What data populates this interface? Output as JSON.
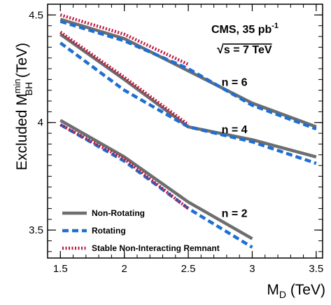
{
  "chart_data": {
    "type": "line",
    "xlabel": "M_D (TeV)",
    "ylabel": "Excluded M_BH^min (TeV)",
    "xlim": [
      1.4,
      3.55
    ],
    "ylim": [
      3.37,
      4.55
    ],
    "x_ticks": [
      1.5,
      2,
      2.5,
      3,
      3.5
    ],
    "x_tick_labels": [
      "1.5",
      "2",
      "2.5",
      "3",
      "3.5"
    ],
    "y_ticks": [
      3.5,
      4,
      4.5
    ],
    "y_tick_labels": [
      "3.5",
      "4",
      "4.5"
    ],
    "grid": false,
    "legend_position": "bottom-left",
    "series": [
      {
        "name": "Non-Rotating",
        "group": "n = 6",
        "style": "solid",
        "color": "#6e6e6e",
        "x": [
          1.5,
          2,
          2.5,
          3,
          3.5
        ],
        "y": [
          4.48,
          4.39,
          4.24,
          4.09,
          3.98
        ]
      },
      {
        "name": "Rotating",
        "group": "n = 6",
        "style": "dashed",
        "color": "#1f6fd1",
        "x": [
          1.5,
          2,
          2.5,
          3,
          3.5
        ],
        "y": [
          4.47,
          4.38,
          4.25,
          4.08,
          3.97
        ]
      },
      {
        "name": "Stable Non-Interacting Remnant",
        "group": "n = 6",
        "style": "dotted",
        "color": "#c0143c",
        "x": [
          1.5,
          2,
          2.5
        ],
        "y": [
          4.5,
          4.41,
          4.27
        ]
      },
      {
        "name": "Non-Rotating",
        "group": "n = 4",
        "style": "solid",
        "color": "#6e6e6e",
        "x": [
          1.5,
          2,
          2.5,
          3,
          3.5
        ],
        "y": [
          4.41,
          4.2,
          3.98,
          3.92,
          3.84
        ]
      },
      {
        "name": "Rotating",
        "group": "n = 4",
        "style": "dashed",
        "color": "#1f6fd1",
        "x": [
          1.5,
          2,
          2.5,
          3,
          3.5
        ],
        "y": [
          4.37,
          4.15,
          3.98,
          3.91,
          3.81
        ]
      },
      {
        "name": "Stable Non-Interacting Remnant",
        "group": "n = 4",
        "style": "dotted",
        "color": "#c0143c",
        "x": [
          1.5,
          2,
          2.5
        ],
        "y": [
          4.42,
          4.21,
          3.99
        ]
      },
      {
        "name": "Non-Rotating",
        "group": "n = 2",
        "style": "solid",
        "color": "#6e6e6e",
        "x": [
          1.5,
          2,
          2.5,
          3
        ],
        "y": [
          4.01,
          3.84,
          3.63,
          3.46
        ]
      },
      {
        "name": "Rotating",
        "group": "n = 2",
        "style": "dashed",
        "color": "#1f6fd1",
        "x": [
          1.5,
          2,
          2.5,
          3
        ],
        "y": [
          3.99,
          3.82,
          3.6,
          3.42
        ]
      },
      {
        "name": "Stable Non-Interacting Remnant",
        "group": "n = 2",
        "style": "dotted",
        "color": "#c0143c",
        "x": [
          1.5,
          2,
          2.5
        ],
        "y": [
          3.99,
          3.83,
          3.6
        ]
      }
    ],
    "annotations": [
      {
        "text": "n = 6",
        "x": 2.76,
        "y": 4.17
      },
      {
        "text": "n = 4",
        "x": 2.76,
        "y": 3.95
      },
      {
        "text": "n = 2",
        "x": 2.76,
        "y": 3.56
      }
    ]
  },
  "header": {
    "experiment": "CMS, 35 pb",
    "lumi_exp": "-1",
    "energy_sqrt": "√",
    "energy_rest": "s = 7 TeV"
  },
  "axes": {
    "x_main": "M",
    "x_sub": "D",
    "x_unit": " (TeV)",
    "y_main": "Excluded M",
    "y_sup": "min",
    "y_sub": "BH",
    "y_unit": " (TeV)"
  },
  "legend": {
    "items": [
      {
        "label": "Non-Rotating",
        "style": "solid",
        "color": "#6e6e6e"
      },
      {
        "label": "Rotating",
        "style": "dashed",
        "color": "#1f6fd1"
      },
      {
        "label": "Stable Non-Interacting Remnant",
        "style": "dotted",
        "color": "#c0143c"
      }
    ]
  }
}
